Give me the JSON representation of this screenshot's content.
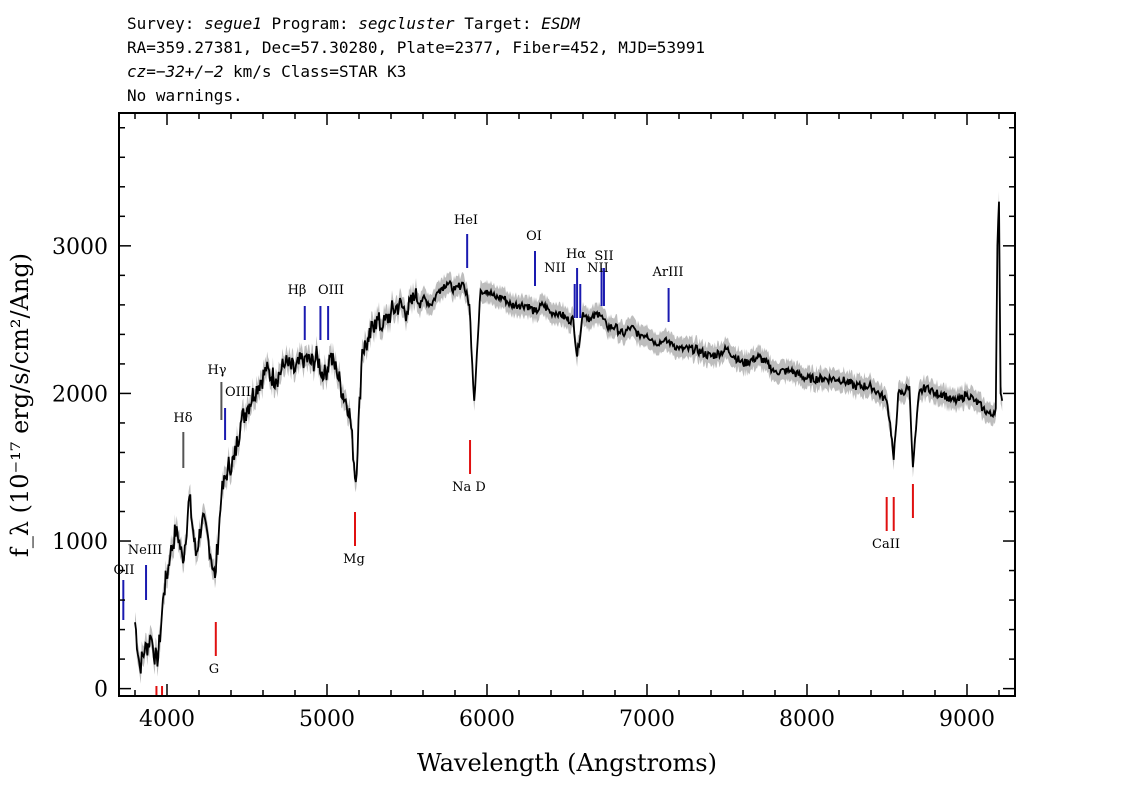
{
  "header": {
    "line1": {
      "survey_label": "Survey:",
      "survey": "segue1",
      "program_label": "Program:",
      "program": "segcluster",
      "target_label": "Target:",
      "target": "ESDM"
    },
    "line2": "RA=359.27381, Dec=57.30280, Plate=2377, Fiber=452, MJD=53991",
    "line3": {
      "cz_label": "cz=",
      "cz_value": "−32+/−2",
      "rest": " km/s Class=STAR K3"
    },
    "line4": "No warnings."
  },
  "chart_data": {
    "type": "line",
    "title": "",
    "xlabel": "Wavelength (Angstroms)",
    "ylabel": "f_λ (10⁻¹⁷ erg/s/cm²/Ang)",
    "xlim": [
      3700,
      9300
    ],
    "ylim": [
      -50,
      3900
    ],
    "x_ticks": [
      4000,
      5000,
      6000,
      7000,
      8000,
      9000
    ],
    "x_tick_labels": [
      "4000",
      "5000",
      "6000",
      "7000",
      "8000",
      "9000"
    ],
    "y_ticks": [
      0,
      1000,
      2000,
      3000
    ],
    "y_tick_labels": [
      "0",
      "1000",
      "2000",
      "3000"
    ],
    "series": [
      {
        "name": "flux",
        "color": "#000000",
        "error_color": "#bdbdbd",
        "x": [
          3800,
          3830,
          3860,
          3900,
          3940,
          3980,
          4020,
          4060,
          4100,
          4140,
          4180,
          4220,
          4260,
          4300,
          4340,
          4380,
          4420,
          4460,
          4500,
          4560,
          4620,
          4680,
          4740,
          4800,
          4860,
          4900,
          4940,
          4980,
          5020,
          5060,
          5100,
          5140,
          5180,
          5220,
          5260,
          5300,
          5350,
          5400,
          5450,
          5500,
          5550,
          5600,
          5650,
          5700,
          5750,
          5800,
          5850,
          5890,
          5920,
          5960,
          6000,
          6050,
          6100,
          6150,
          6200,
          6250,
          6300,
          6350,
          6400,
          6450,
          6500,
          6540,
          6563,
          6600,
          6650,
          6700,
          6750,
          6800,
          6850,
          6900,
          6950,
          7000,
          7050,
          7100,
          7150,
          7200,
          7300,
          7400,
          7500,
          7600,
          7700,
          7800,
          7900,
          8000,
          8100,
          8200,
          8300,
          8400,
          8450,
          8498,
          8520,
          8542,
          8570,
          8600,
          8640,
          8662,
          8700,
          8750,
          8800,
          8850,
          8900,
          8950,
          9000,
          9050,
          9100,
          9150,
          9180,
          9190,
          9200,
          9210,
          9220
        ],
        "y": [
          450,
          150,
          250,
          350,
          150,
          650,
          900,
          1100,
          850,
          1300,
          900,
          1150,
          1000,
          750,
          1300,
          1500,
          1550,
          1800,
          1900,
          2050,
          2150,
          2100,
          2200,
          2150,
          2250,
          2200,
          2250,
          2100,
          2250,
          2150,
          2000,
          1900,
          1400,
          2300,
          2350,
          2500,
          2450,
          2550,
          2600,
          2550,
          2650,
          2650,
          2600,
          2700,
          2750,
          2700,
          2750,
          2600,
          1950,
          2700,
          2700,
          2650,
          2650,
          2600,
          2600,
          2600,
          2550,
          2600,
          2550,
          2550,
          2500,
          2500,
          2250,
          2550,
          2500,
          2550,
          2450,
          2450,
          2400,
          2450,
          2400,
          2400,
          2350,
          2350,
          2350,
          2300,
          2300,
          2250,
          2300,
          2200,
          2250,
          2150,
          2150,
          2100,
          2100,
          2100,
          2050,
          2050,
          2000,
          1950,
          1800,
          1550,
          2000,
          2000,
          2050,
          1500,
          2000,
          2050,
          2000,
          2000,
          1950,
          1950,
          2000,
          1950,
          1900,
          1850,
          1900,
          3000,
          3300,
          2000,
          1950
        ]
      }
    ],
    "emission_lines": [
      {
        "label": "OII",
        "x": 3727
      },
      {
        "label": "NeIII",
        "x": 3869
      },
      {
        "label": "Hδ",
        "x": 4102
      },
      {
        "label": "Hγ",
        "x": 4340
      },
      {
        "label": "OIII",
        "x": 4363
      },
      {
        "label": "Hβ",
        "x": 4861
      },
      {
        "label": "OIII",
        "x": 4959
      },
      {
        "label": "OIII",
        "x": 5007
      },
      {
        "label": "HeI",
        "x": 5876
      },
      {
        "label": "OI",
        "x": 6300
      },
      {
        "label": "NII",
        "x": 6548
      },
      {
        "label": "Hα",
        "x": 6563
      },
      {
        "label": "NII",
        "x": 6583
      },
      {
        "label": "SII",
        "x": 6716
      },
      {
        "label": "SII",
        "x": 6731
      },
      {
        "label": "ArIII",
        "x": 7135
      }
    ],
    "absorption_lines": [
      {
        "label": "",
        "x": 3934
      },
      {
        "label": "",
        "x": 3969
      },
      {
        "label": "G",
        "x": 4305
      },
      {
        "label": "Mg",
        "x": 5175
      },
      {
        "label": "Na D",
        "x": 5894
      },
      {
        "label": "CaII",
        "x": 8498
      },
      {
        "label": "",
        "x": 8542
      },
      {
        "label": "",
        "x": 8662
      }
    ],
    "emission_label_texts": [
      "OII",
      "NeIII",
      "Hδ",
      "Hγ",
      "OIII",
      "Hβ",
      "OIII",
      "HeI",
      "OI",
      "NII",
      "Hα",
      "NII",
      "SII",
      "ArIII"
    ],
    "absorption_label_texts": [
      "G",
      "Mg",
      "Na D",
      "CaII"
    ]
  }
}
